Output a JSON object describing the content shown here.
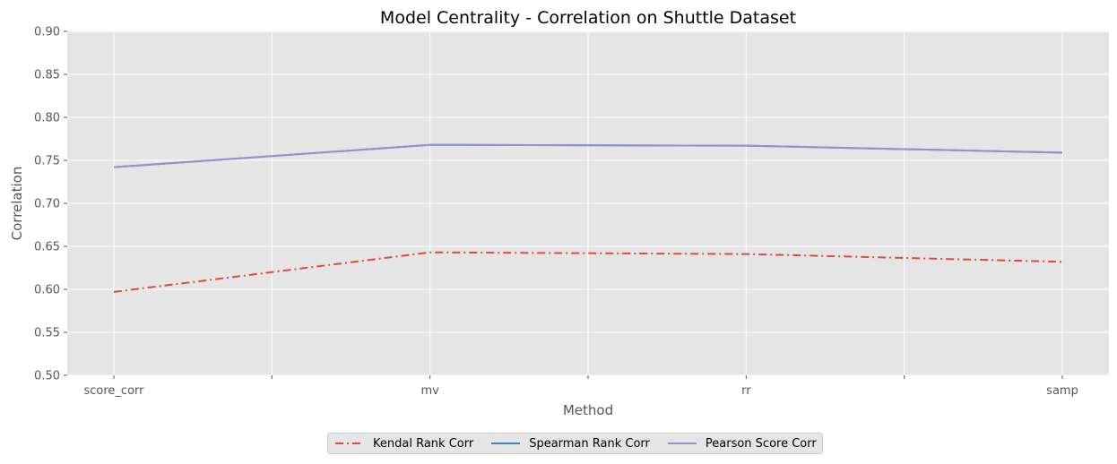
{
  "chart_data": {
    "type": "line",
    "title": "Model Centrality - Correlation on Shuttle Dataset",
    "xlabel": "Method",
    "ylabel": "Correlation",
    "ylim": [
      0.5,
      0.9
    ],
    "yticks": [
      "0.50",
      "0.55",
      "0.60",
      "0.65",
      "0.70",
      "0.75",
      "0.80",
      "0.85",
      "0.90"
    ],
    "categories": [
      "score_corr",
      "mv",
      "rr",
      "samp"
    ],
    "grid": true,
    "legend_position": "bottom-center",
    "series": [
      {
        "name": "Kendal Rank Corr",
        "values": [
          0.597,
          0.643,
          0.641,
          0.632
        ],
        "color": "#E24A33",
        "style": "dashdot"
      },
      {
        "name": "Spearman Rank Corr",
        "values": [
          0.742,
          0.768,
          0.767,
          0.759
        ],
        "color": "#348ABD",
        "style": "solid"
      },
      {
        "name": "Pearson Score Corr",
        "values": [
          0.742,
          0.768,
          0.767,
          0.759
        ],
        "color": "#988ED5",
        "style": "solid"
      }
    ],
    "plot_background": "#E5E5E5",
    "grid_color": "#FFFFFF"
  }
}
